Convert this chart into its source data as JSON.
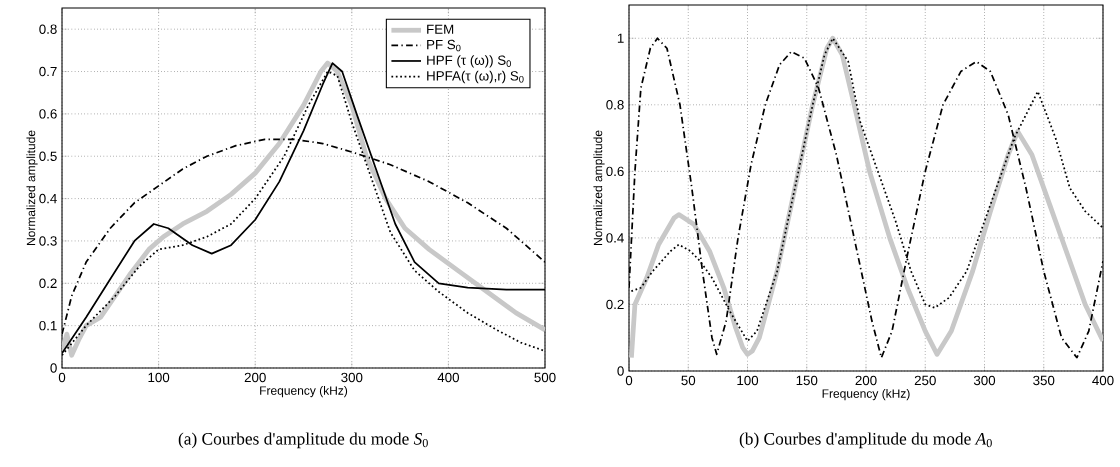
{
  "chart_data": [
    {
      "type": "line",
      "xlabel": "Frequency (kHz)",
      "ylabel": "Normalized amplitude",
      "xlim": [
        0,
        500
      ],
      "ylim": [
        0,
        0.85
      ],
      "xticks": [
        0,
        100,
        200,
        300,
        400,
        500
      ],
      "yticks": [
        0,
        0.1,
        0.2,
        0.3,
        0.4,
        0.5,
        0.6,
        0.7,
        0.8
      ],
      "grid": true,
      "legend": "top right",
      "annotations": [
        "(a) Courbes d'amplitude du mode *S*$_{0}$"
      ],
      "series": [
        {
          "name": "FEM",
          "color": "#c8c8c8",
          "line_style": "solid",
          "x": [
            0,
            5,
            10,
            18,
            25,
            40,
            55,
            70,
            90,
            105,
            125,
            150,
            175,
            200,
            225,
            250,
            268,
            275,
            285,
            300,
            315,
            335,
            355,
            380,
            410,
            440,
            470,
            500
          ],
          "values": [
            0.04,
            0.08,
            0.03,
            0.07,
            0.1,
            0.12,
            0.17,
            0.22,
            0.28,
            0.31,
            0.34,
            0.37,
            0.41,
            0.46,
            0.53,
            0.62,
            0.7,
            0.72,
            0.7,
            0.62,
            0.5,
            0.4,
            0.33,
            0.28,
            0.23,
            0.18,
            0.13,
            0.09
          ]
        },
        {
          "name": "PF S$_{0}$",
          "color": "#000000",
          "line_style": "dashdot",
          "x": [
            0,
            10,
            25,
            50,
            75,
            100,
            125,
            150,
            180,
            210,
            240,
            270,
            300,
            340,
            380,
            420,
            460,
            500
          ],
          "values": [
            0.08,
            0.17,
            0.25,
            0.33,
            0.39,
            0.43,
            0.47,
            0.5,
            0.525,
            0.54,
            0.54,
            0.53,
            0.51,
            0.48,
            0.44,
            0.39,
            0.33,
            0.25
          ]
        },
        {
          "name": "HPF (τ (ω)) S$_{0}$",
          "color": "#000000",
          "line_style": "solid",
          "x": [
            0,
            25,
            50,
            75,
            95,
            110,
            135,
            155,
            175,
            200,
            225,
            250,
            270,
            280,
            290,
            305,
            325,
            345,
            365,
            390,
            420,
            460,
            500
          ],
          "values": [
            0.035,
            0.12,
            0.21,
            0.3,
            0.34,
            0.33,
            0.29,
            0.27,
            0.29,
            0.35,
            0.44,
            0.56,
            0.67,
            0.72,
            0.7,
            0.6,
            0.47,
            0.34,
            0.25,
            0.2,
            0.19,
            0.185,
            0.185
          ]
        },
        {
          "name": "HPFA(τ (ω),r) S$_{0}$",
          "color": "#000000",
          "line_style": "dotted",
          "x": [
            0,
            25,
            55,
            80,
            100,
            125,
            150,
            175,
            200,
            230,
            255,
            275,
            285,
            300,
            320,
            340,
            365,
            390,
            420,
            450,
            475,
            500
          ],
          "values": [
            0.03,
            0.1,
            0.17,
            0.24,
            0.28,
            0.29,
            0.31,
            0.34,
            0.4,
            0.5,
            0.62,
            0.7,
            0.69,
            0.58,
            0.45,
            0.32,
            0.23,
            0.18,
            0.13,
            0.09,
            0.06,
            0.04
          ]
        }
      ]
    },
    {
      "type": "line",
      "xlabel": "Frequency (kHz)",
      "ylabel": "Normalized amplitude",
      "xlim": [
        0,
        400
      ],
      "ylim": [
        0,
        1.1
      ],
      "xticks": [
        0,
        50,
        100,
        150,
        200,
        250,
        300,
        350,
        400
      ],
      "yticks": [
        0,
        0.2,
        0.4,
        0.6,
        0.8,
        1
      ],
      "grid": true,
      "annotations": [
        "(b) Courbes d'amplitude du mode *A*$_{0}$"
      ],
      "series": [
        {
          "color": "#c8c8c8",
          "line_style": "solid",
          "x": [
            2,
            5,
            15,
            25,
            38,
            42,
            55,
            68,
            80,
            90,
            96,
            100,
            104,
            110,
            125,
            140,
            155,
            167,
            172,
            180,
            190,
            203,
            220,
            235,
            250,
            260,
            272,
            290,
            305,
            320,
            328,
            340,
            355,
            370,
            385,
            400
          ],
          "values": [
            0.04,
            0.2,
            0.28,
            0.38,
            0.46,
            0.47,
            0.44,
            0.36,
            0.25,
            0.13,
            0.07,
            0.05,
            0.06,
            0.1,
            0.3,
            0.55,
            0.8,
            0.97,
            1.0,
            0.95,
            0.8,
            0.6,
            0.4,
            0.25,
            0.12,
            0.05,
            0.12,
            0.3,
            0.48,
            0.65,
            0.72,
            0.65,
            0.5,
            0.35,
            0.2,
            0.09
          ]
        },
        {
          "color": "#000000",
          "line_style": "dashdot",
          "x": [
            0,
            5,
            10,
            18,
            24,
            32,
            43,
            53,
            62,
            70,
            74,
            82,
            92,
            103,
            115,
            127,
            137,
            148,
            160,
            175,
            190,
            205,
            213,
            222,
            235,
            250,
            265,
            280,
            293,
            305,
            320,
            335,
            350,
            365,
            378,
            388,
            400
          ],
          "values": [
            0.25,
            0.6,
            0.85,
            0.97,
            1.0,
            0.97,
            0.8,
            0.55,
            0.3,
            0.1,
            0.05,
            0.15,
            0.4,
            0.62,
            0.8,
            0.92,
            0.96,
            0.94,
            0.85,
            0.65,
            0.4,
            0.15,
            0.04,
            0.12,
            0.35,
            0.6,
            0.8,
            0.9,
            0.93,
            0.9,
            0.77,
            0.55,
            0.3,
            0.1,
            0.04,
            0.12,
            0.33
          ]
        },
        {
          "color": "#000000",
          "line_style": "dotted",
          "x": [
            2,
            10,
            20,
            35,
            42,
            52,
            60,
            70,
            85,
            100,
            108,
            125,
            140,
            155,
            165,
            172,
            185,
            195,
            210,
            225,
            238,
            250,
            258,
            270,
            285,
            305,
            325,
            345,
            360,
            372,
            385,
            400
          ],
          "values": [
            0.24,
            0.25,
            0.3,
            0.36,
            0.38,
            0.36,
            0.33,
            0.28,
            0.18,
            0.09,
            0.12,
            0.3,
            0.55,
            0.8,
            0.95,
            1.0,
            0.93,
            0.75,
            0.6,
            0.45,
            0.3,
            0.2,
            0.19,
            0.22,
            0.3,
            0.5,
            0.7,
            0.84,
            0.7,
            0.55,
            0.48,
            0.43
          ]
        }
      ]
    }
  ]
}
